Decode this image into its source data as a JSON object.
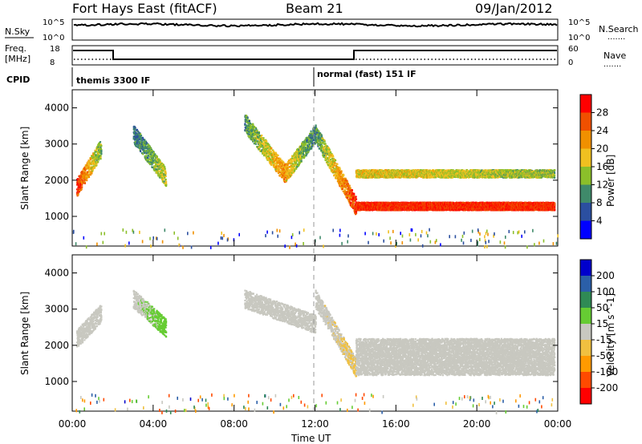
{
  "header": {
    "title": "Fort Hays East (fitACF)",
    "beam": "Beam 21",
    "date": "09/Jan/2012"
  },
  "top_panels": {
    "nsky_label": "N.Sky",
    "nsearch_label": "N.Search",
    "noise_ticks_left": [
      "10^5",
      "10^0"
    ],
    "noise_ticks_right": [
      "10^5",
      "10^0"
    ],
    "freq_label_1": "Freq.",
    "freq_label_2": "[MHz]",
    "freq_ticks": [
      "18",
      "8"
    ],
    "nave_label": "Nave",
    "nave_ticks": [
      "60",
      "0"
    ],
    "cpid_label": "CPID",
    "cpid_1": "themis 3300 IF",
    "cpid_2": "normal (fast) 151 IF",
    "dotted_legend": "......."
  },
  "colors": {
    "power_scale": [
      "#0000ff",
      "#2b4fa0",
      "#3f8a6a",
      "#8bbf2a",
      "#f0c020",
      "#f09000",
      "#f05000",
      "#ff0000"
    ],
    "velocity_scale": [
      "#ff0000",
      "#ff4a00",
      "#ff9a00",
      "#f0c040",
      "#c8c8c0",
      "#66cc33",
      "#2f8a55",
      "#2b5fa8",
      "#0000cc"
    ]
  },
  "chart_data": [
    {
      "type": "heatmap",
      "title": "",
      "xlabel": "Time UT",
      "ylabel": "Slant Range [km]",
      "x_ticks": [
        "00:00",
        "04:00",
        "08:00",
        "12:00",
        "16:00",
        "20:00",
        "00:00"
      ],
      "y_ticks": [
        "1000",
        "2000",
        "3000",
        "4000"
      ],
      "xlim": [
        0,
        24
      ],
      "ylim": [
        180,
        4500
      ],
      "colorbar_label": "Power [dB]",
      "colorbar_ticks": [
        "4",
        "8",
        "12",
        "16",
        "20",
        "24",
        "28"
      ],
      "colorbar_range": [
        0,
        32
      ],
      "series": [
        {
          "x_range": [
            0.2,
            1.4
          ],
          "y_center": [
            1800,
            2900
          ],
          "power": [
            28,
            12
          ]
        },
        {
          "x_range": [
            3.0,
            4.6
          ],
          "y_center": [
            3300,
            2100
          ],
          "power": [
            8,
            16
          ]
        },
        {
          "x_range": [
            8.5,
            10.5
          ],
          "y_center": [
            3600,
            2200
          ],
          "power": [
            10,
            22
          ]
        },
        {
          "x_range": [
            10.5,
            12.0
          ],
          "y_center": [
            2200,
            3300
          ],
          "power": [
            20,
            8
          ]
        },
        {
          "x_range": [
            12.0,
            14.0
          ],
          "y_center": [
            3300,
            1300
          ],
          "power": [
            10,
            28
          ]
        },
        {
          "x_range": [
            14.0,
            23.8
          ],
          "y_center": [
            1300,
            1300
          ],
          "power": [
            28,
            28
          ]
        },
        {
          "x_range": [
            14.0,
            23.8
          ],
          "y_center": [
            2200,
            2200
          ],
          "power": [
            18,
            14
          ]
        }
      ]
    },
    {
      "type": "heatmap",
      "title": "",
      "xlabel": "Time UT",
      "ylabel": "Slant Range [km]",
      "x_ticks": [
        "00:00",
        "04:00",
        "08:00",
        "12:00",
        "16:00",
        "20:00",
        "00:00"
      ],
      "y_ticks": [
        "1000",
        "2000",
        "3000",
        "4000"
      ],
      "xlim": [
        0,
        24
      ],
      "ylim": [
        180,
        4500
      ],
      "colorbar_label": "Velocity [m s^-1]",
      "colorbar_ticks": [
        "200",
        "100",
        "50",
        "15",
        "-15",
        "-50",
        "-100",
        "-200"
      ],
      "colorbar_range": [
        -250,
        250
      ],
      "series": [
        {
          "x_range": [
            0.2,
            1.4
          ],
          "y_center": [
            2200,
            2900
          ],
          "velocity": [
            0,
            0
          ]
        },
        {
          "x_range": [
            3.0,
            4.6
          ],
          "y_center": [
            3300,
            2500
          ],
          "velocity": [
            0,
            -60
          ]
        },
        {
          "x_range": [
            8.5,
            12.0
          ],
          "y_center": [
            3300,
            2600
          ],
          "velocity": [
            0,
            0
          ]
        },
        {
          "x_range": [
            12.0,
            14.0
          ],
          "y_center": [
            3300,
            1400
          ],
          "velocity": [
            0,
            40
          ]
        },
        {
          "x_range": [
            14.0,
            23.8
          ],
          "y_center": [
            1700,
            1700
          ],
          "velocity": [
            0,
            0
          ]
        }
      ]
    }
  ]
}
